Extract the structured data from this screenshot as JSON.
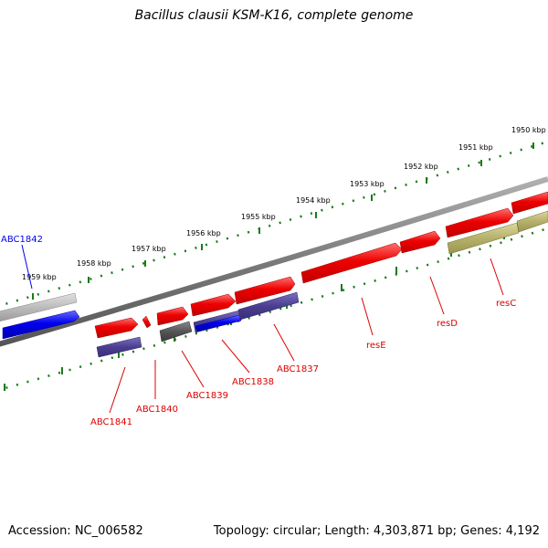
{
  "title": "Bacillus clausii KSM-K16, complete genome",
  "footer": {
    "accession": "Accession: NC_006582",
    "topology": "Topology: circular; Length: 4,303,871 bp; Genes: 4,192"
  },
  "colors": {
    "backbone": "#808080",
    "tick": "#1a7a1a",
    "forward_gene": "#ee0000",
    "blue_gene": "#0000ee",
    "purple_gene": "#4b3e91",
    "dark_gene": "#555555",
    "olive_gene": "#b5b06a",
    "light_gene": "#bbbbbb"
  },
  "scale_labels": [
    "1950 kbp",
    "1951 kbp",
    "1952 kbp",
    "1953 kbp",
    "1954 kbp",
    "1955 kbp",
    "1956 kbp",
    "1957 kbp",
    "1958 kbp",
    "1959 kbp"
  ],
  "genes": [
    {
      "name": "ABC1842",
      "label_color": "#0000ee"
    },
    {
      "name": "ABC1841",
      "label_color": "#dd0000"
    },
    {
      "name": "ABC1840",
      "label_color": "#dd0000"
    },
    {
      "name": "ABC1839",
      "label_color": "#dd0000"
    },
    {
      "name": "ABC1838",
      "label_color": "#dd0000"
    },
    {
      "name": "ABC1837",
      "label_color": "#dd0000"
    },
    {
      "name": "resE",
      "label_color": "#dd0000"
    },
    {
      "name": "resD",
      "label_color": "#dd0000"
    },
    {
      "name": "resC",
      "label_color": "#dd0000"
    }
  ]
}
